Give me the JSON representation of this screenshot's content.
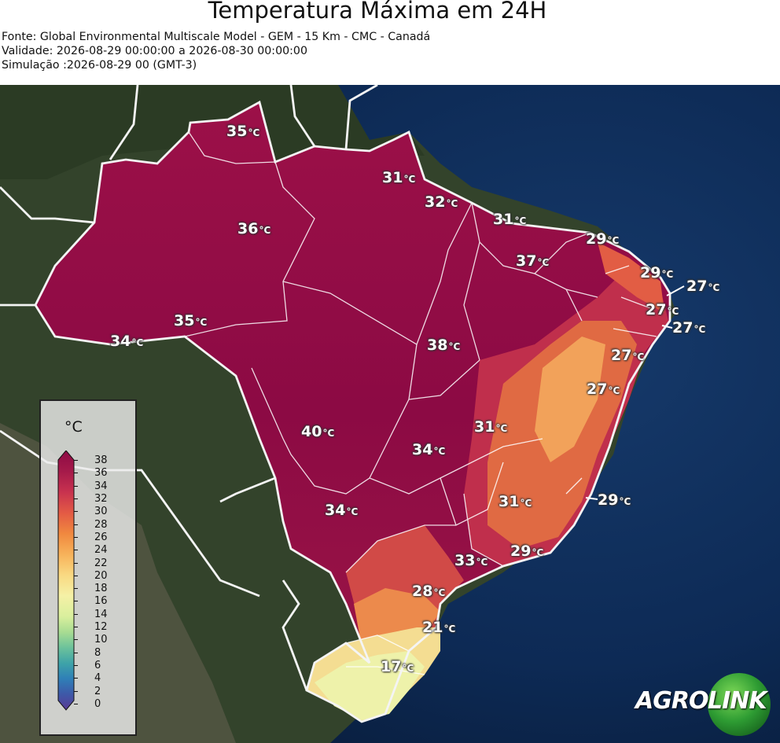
{
  "header": {
    "title": "Temperatura Máxima em 24H",
    "source": "Fonte: Global Environmental Multiscale Model - GEM - 15 Km - CMC - Canadá",
    "validity": "Validade: 2026-08-29 00:00:00 a 2026-08-30 00:00:00",
    "simulation": "Simulação :2026-08-29 00 (GMT-3)"
  },
  "legend": {
    "unit": "°C",
    "ticks": [
      "38",
      "36",
      "34",
      "32",
      "30",
      "28",
      "26",
      "24",
      "22",
      "20",
      "18",
      "16",
      "14",
      "12",
      "10",
      "8",
      "6",
      "4",
      "2",
      "0"
    ]
  },
  "map_labels": [
    {
      "value": "35",
      "unit": "°C"
    },
    {
      "value": "31",
      "unit": "°C"
    },
    {
      "value": "32",
      "unit": "°C"
    },
    {
      "value": "31",
      "unit": "°C"
    },
    {
      "value": "36",
      "unit": "°C"
    },
    {
      "value": "29",
      "unit": "°C"
    },
    {
      "value": "37",
      "unit": "°C"
    },
    {
      "value": "29",
      "unit": "°C"
    },
    {
      "value": "27",
      "unit": "°C"
    },
    {
      "value": "27",
      "unit": "°C"
    },
    {
      "value": "27",
      "unit": "°C"
    },
    {
      "value": "35",
      "unit": "°C"
    },
    {
      "value": "34",
      "unit": "°C"
    },
    {
      "value": "38",
      "unit": "°C"
    },
    {
      "value": "27",
      "unit": "°C"
    },
    {
      "value": "27",
      "unit": "°C"
    },
    {
      "value": "31",
      "unit": "°C"
    },
    {
      "value": "40",
      "unit": "°C"
    },
    {
      "value": "34",
      "unit": "°C"
    },
    {
      "value": "31",
      "unit": "°C"
    },
    {
      "value": "29",
      "unit": "°C"
    },
    {
      "value": "34",
      "unit": "°C"
    },
    {
      "value": "29",
      "unit": "°C"
    },
    {
      "value": "33",
      "unit": "°C"
    },
    {
      "value": "28",
      "unit": "°C"
    },
    {
      "value": "21",
      "unit": "°C"
    },
    {
      "value": "17",
      "unit": "°C"
    }
  ],
  "logo": {
    "part1": "AGRO",
    "part2": "LINK"
  },
  "colors": {
    "hot": "#8e0a46",
    "warm": "#c8324f",
    "orange": "#e8703e",
    "pale": "#f2f0a8",
    "ocean": "#0b2244",
    "land": "#3a4a30"
  }
}
